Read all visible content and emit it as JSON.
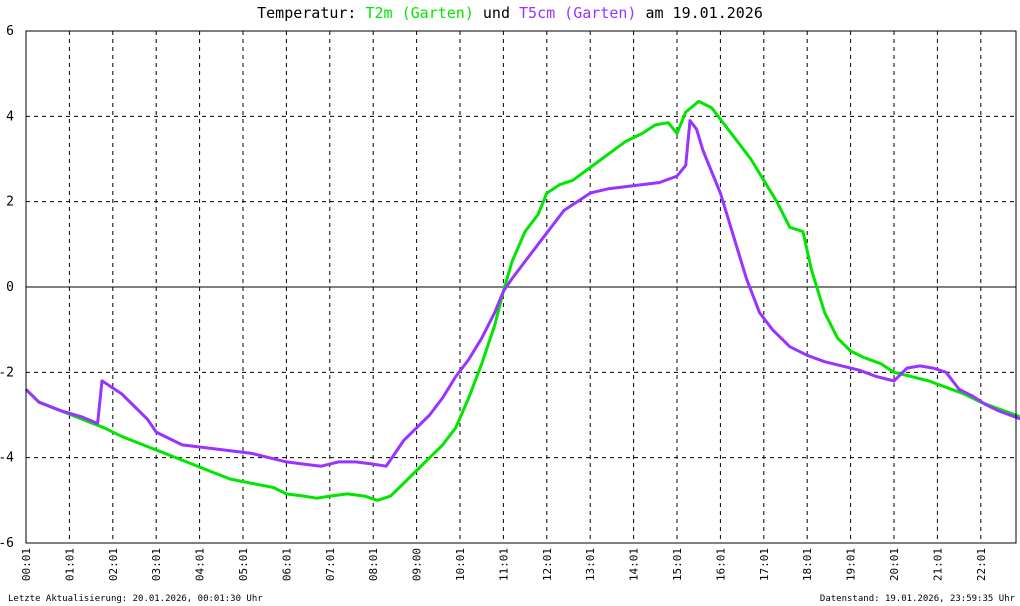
{
  "chart_data": {
    "type": "line",
    "title": {
      "prefix": "Temperatur: ",
      "series1": "T2m (Garten)",
      "middle": " und ",
      "series2": "T5cm (Garten)",
      "suffix": " am 19.01.2026"
    },
    "xlabel": "",
    "ylabel": "",
    "ylim": [
      -6,
      6
    ],
    "yticks": [
      -6,
      -4,
      -2,
      0,
      2,
      4,
      6
    ],
    "xlim": [
      0,
      24
    ],
    "xtick_labels": [
      "00:01",
      "01:01",
      "02:01",
      "03:01",
      "04:01",
      "05:01",
      "06:01",
      "07:01",
      "08:01",
      "09:00",
      "10:01",
      "11:01",
      "12:01",
      "13:01",
      "14:01",
      "15:01",
      "16:01",
      "17:01",
      "18:01",
      "19:01",
      "20:01",
      "21:01",
      "22:01",
      "23:01"
    ],
    "xtick_hours": [
      0,
      1,
      2,
      3,
      4,
      5,
      6,
      7,
      8,
      9,
      10,
      11,
      12,
      13,
      14,
      15,
      16,
      17,
      18,
      19,
      20,
      21,
      22,
      23
    ],
    "grid": true,
    "series": [
      {
        "name": "T2m (Garten)",
        "color": "#00e600",
        "x": [
          0,
          0.3,
          0.8,
          1.3,
          1.8,
          2.2,
          2.7,
          3.2,
          3.7,
          4.2,
          4.7,
          5.2,
          5.7,
          6.0,
          6.4,
          6.7,
          7.0,
          7.4,
          7.8,
          8.1,
          8.4,
          8.7,
          9.0,
          9.3,
          9.6,
          9.9,
          10.2,
          10.5,
          10.8,
          11.0,
          11.2,
          11.5,
          11.8,
          12.0,
          12.3,
          12.6,
          13.0,
          13.4,
          13.8,
          14.2,
          14.5,
          14.8,
          15.0,
          15.2,
          15.5,
          15.8,
          16.1,
          16.4,
          16.7,
          17.0,
          17.3,
          17.6,
          17.9,
          18.1,
          18.4,
          18.7,
          19.0,
          19.3,
          19.7,
          20.0,
          20.4,
          20.8,
          21.2,
          21.6,
          22.0,
          22.4,
          22.8,
          23.2,
          23.6,
          24.0
        ],
        "y": [
          -2.4,
          -2.7,
          -2.9,
          -3.1,
          -3.3,
          -3.5,
          -3.7,
          -3.9,
          -4.1,
          -4.3,
          -4.5,
          -4.6,
          -4.7,
          -4.85,
          -4.9,
          -4.95,
          -4.9,
          -4.85,
          -4.9,
          -5.0,
          -4.9,
          -4.6,
          -4.3,
          -4.0,
          -3.7,
          -3.3,
          -2.6,
          -1.8,
          -0.9,
          -0.1,
          0.6,
          1.3,
          1.7,
          2.2,
          2.4,
          2.5,
          2.8,
          3.1,
          3.4,
          3.6,
          3.8,
          3.85,
          3.6,
          4.1,
          4.35,
          4.2,
          3.8,
          3.4,
          3.0,
          2.5,
          2.0,
          1.4,
          1.3,
          0.4,
          -0.6,
          -1.2,
          -1.5,
          -1.65,
          -1.8,
          -2.0,
          -2.1,
          -2.2,
          -2.35,
          -2.5,
          -2.7,
          -2.85,
          -3.0,
          -3.2,
          -3.35,
          -3.6
        ]
      },
      {
        "name": "T5cm (Garten)",
        "color": "#9933ff",
        "x": [
          0,
          0.3,
          0.8,
          1.3,
          1.65,
          1.75,
          1.9,
          2.2,
          2.5,
          2.8,
          3.0,
          3.3,
          3.6,
          4.0,
          4.4,
          4.8,
          5.2,
          5.6,
          6.0,
          6.4,
          6.8,
          7.2,
          7.6,
          8.0,
          8.3,
          8.5,
          8.7,
          9.0,
          9.3,
          9.6,
          9.9,
          10.2,
          10.5,
          10.8,
          11.0,
          11.2,
          11.5,
          11.8,
          12.1,
          12.4,
          12.7,
          13.0,
          13.4,
          13.8,
          14.2,
          14.6,
          15.0,
          15.2,
          15.3,
          15.45,
          15.6,
          15.8,
          16.0,
          16.3,
          16.6,
          16.9,
          17.2,
          17.6,
          18.0,
          18.4,
          18.8,
          19.2,
          19.6,
          20.0,
          20.3,
          20.6,
          20.9,
          21.2,
          21.5,
          21.8,
          22.1,
          22.4,
          22.8,
          23.2,
          23.6,
          24.0
        ],
        "y": [
          -2.4,
          -2.7,
          -2.9,
          -3.05,
          -3.2,
          -2.2,
          -2.3,
          -2.5,
          -2.8,
          -3.1,
          -3.4,
          -3.55,
          -3.7,
          -3.75,
          -3.8,
          -3.85,
          -3.9,
          -4.0,
          -4.1,
          -4.15,
          -4.2,
          -4.1,
          -4.1,
          -4.15,
          -4.2,
          -3.9,
          -3.6,
          -3.3,
          -3.0,
          -2.6,
          -2.1,
          -1.7,
          -1.2,
          -0.6,
          -0.1,
          0.2,
          0.6,
          1.0,
          1.4,
          1.8,
          2.0,
          2.2,
          2.3,
          2.35,
          2.4,
          2.45,
          2.6,
          2.85,
          3.9,
          3.7,
          3.2,
          2.7,
          2.2,
          1.2,
          0.2,
          -0.6,
          -1.0,
          -1.4,
          -1.6,
          -1.75,
          -1.85,
          -1.95,
          -2.1,
          -2.2,
          -1.9,
          -1.85,
          -1.9,
          -2.0,
          -2.4,
          -2.55,
          -2.75,
          -2.9,
          -3.05,
          -3.2,
          -3.3,
          -3.4
        ]
      }
    ]
  },
  "footer": {
    "left": "Letzte Aktualisierung: 20.01.2026, 00:01:30 Uhr",
    "right": "Datenstand: 19.01.2026, 23:59:35 Uhr"
  },
  "colors": {
    "frame": "#000000",
    "grid": "#000000",
    "zero_line": "#000000"
  }
}
